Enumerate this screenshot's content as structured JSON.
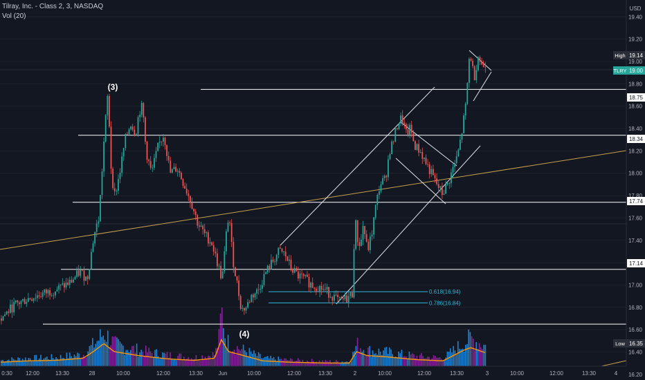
{
  "header": {
    "title": "Tilray, Inc. - Class 2, 3, NASDAQ",
    "volume_label": "Vol (20)"
  },
  "colors": {
    "background": "#131722",
    "up": "#26a69a",
    "down": "#ef5350",
    "volume_up": "#2196f3",
    "volume_down": "#9c27b0",
    "volume_ma": "#ff9800",
    "levels": "#ffffff",
    "trendline": "#c8a24b",
    "fib": "#2fb8d8",
    "last_price_tag": "#26a69a"
  },
  "chart_data": {
    "type": "candlestick",
    "symbol": "TLRY",
    "currency": "USD",
    "y_axis": {
      "min": 16.15,
      "max": 19.55,
      "ticks": [
        16.2,
        16.4,
        16.6,
        16.8,
        17.0,
        17.2,
        17.4,
        17.6,
        17.8,
        18.0,
        18.2,
        18.4,
        18.6,
        18.8,
        19.0,
        19.2,
        19.4
      ]
    },
    "x_axis": {
      "tick_labels": [
        "0:30",
        "12:00",
        "13:30",
        "28",
        "10:00",
        "12:00",
        "13:30",
        "Jun",
        "10:00",
        "12:00",
        "13:30",
        "2",
        "10:00",
        "12:00",
        "13:30",
        "3",
        "10:00",
        "12:00",
        "13:30",
        "4"
      ]
    },
    "horizontal_levels": [
      18.75,
      18.34,
      17.74,
      17.14,
      16.65
    ],
    "price_tags": [
      {
        "label": "High",
        "value": "19.14"
      },
      {
        "label": "TLRY",
        "value": "19.00"
      },
      {
        "label": "",
        "value": "18.75"
      },
      {
        "label": "",
        "value": "18.34"
      },
      {
        "label": "",
        "value": "17.74"
      },
      {
        "label": "",
        "value": "17.14"
      },
      {
        "label": "Low",
        "value": "16.35"
      }
    ],
    "fib_levels": [
      {
        "label": "0.618(16.94)",
        "value": 16.94
      },
      {
        "label": "0.786(16.84)",
        "value": 16.84
      }
    ],
    "annotations": [
      {
        "text": "(3)",
        "price": 18.77
      },
      {
        "text": "(4)",
        "price": 16.56
      }
    ],
    "price_path": [
      [
        0,
        16.7
      ],
      [
        20,
        16.82
      ],
      [
        40,
        16.88
      ],
      [
        60,
        16.92
      ],
      [
        80,
        16.96
      ],
      [
        100,
        17.02
      ],
      [
        115,
        17.12
      ],
      [
        125,
        17.05
      ],
      [
        135,
        17.45
      ],
      [
        142,
        17.6
      ],
      [
        150,
        18.35
      ],
      [
        155,
        18.72
      ],
      [
        160,
        18.0
      ],
      [
        165,
        17.8
      ],
      [
        172,
        18.0
      ],
      [
        180,
        18.3
      ],
      [
        188,
        18.45
      ],
      [
        195,
        18.35
      ],
      [
        200,
        18.55
      ],
      [
        205,
        18.6
      ],
      [
        210,
        18.2
      ],
      [
        218,
        18.0
      ],
      [
        228,
        18.25
      ],
      [
        236,
        18.35
      ],
      [
        245,
        18.0
      ],
      [
        255,
        18.05
      ],
      [
        265,
        17.9
      ],
      [
        275,
        17.75
      ],
      [
        285,
        17.55
      ],
      [
        295,
        17.45
      ],
      [
        305,
        17.38
      ],
      [
        313,
        17.2
      ],
      [
        320,
        17.05
      ],
      [
        326,
        17.45
      ],
      [
        330,
        17.65
      ],
      [
        335,
        17.25
      ],
      [
        342,
        17.0
      ],
      [
        348,
        16.78
      ],
      [
        355,
        16.8
      ],
      [
        362,
        16.9
      ],
      [
        372,
        16.95
      ],
      [
        382,
        17.1
      ],
      [
        392,
        17.2
      ],
      [
        402,
        17.3
      ],
      [
        410,
        17.28
      ],
      [
        420,
        17.15
      ],
      [
        430,
        17.08
      ],
      [
        440,
        17.05
      ],
      [
        450,
        17.0
      ],
      [
        460,
        16.98
      ],
      [
        470,
        16.95
      ],
      [
        480,
        16.9
      ],
      [
        490,
        16.85
      ],
      [
        500,
        16.88
      ],
      [
        508,
        16.92
      ],
      [
        512,
        17.6
      ],
      [
        516,
        17.4
      ],
      [
        520,
        17.35
      ],
      [
        524,
        17.55
      ],
      [
        530,
        17.3
      ],
      [
        536,
        17.45
      ],
      [
        542,
        17.7
      ],
      [
        548,
        17.9
      ],
      [
        556,
        17.95
      ],
      [
        562,
        18.2
      ],
      [
        568,
        18.3
      ],
      [
        574,
        18.45
      ],
      [
        580,
        18.5
      ],
      [
        586,
        18.35
      ],
      [
        592,
        18.4
      ],
      [
        598,
        18.25
      ],
      [
        606,
        18.2
      ],
      [
        614,
        18.1
      ],
      [
        622,
        18.0
      ],
      [
        630,
        17.9
      ],
      [
        638,
        17.82
      ],
      [
        646,
        17.9
      ],
      [
        654,
        18.05
      ],
      [
        660,
        18.15
      ],
      [
        666,
        18.35
      ],
      [
        672,
        18.6
      ],
      [
        678,
        19.1
      ],
      [
        684,
        18.85
      ],
      [
        690,
        19.05
      ],
      [
        696,
        18.95
      ],
      [
        702,
        19.0
      ]
    ],
    "volume_path": [
      [
        0,
        0.15
      ],
      [
        40,
        0.2
      ],
      [
        80,
        0.22
      ],
      [
        120,
        0.3
      ],
      [
        135,
        0.55
      ],
      [
        150,
        0.85
      ],
      [
        165,
        0.55
      ],
      [
        200,
        0.4
      ],
      [
        240,
        0.28
      ],
      [
        280,
        0.22
      ],
      [
        310,
        0.3
      ],
      [
        320,
        1.0
      ],
      [
        330,
        0.55
      ],
      [
        345,
        0.45
      ],
      [
        380,
        0.2
      ],
      [
        420,
        0.15
      ],
      [
        470,
        0.12
      ],
      [
        505,
        0.12
      ],
      [
        515,
        0.55
      ],
      [
        530,
        0.4
      ],
      [
        560,
        0.35
      ],
      [
        600,
        0.25
      ],
      [
        640,
        0.2
      ],
      [
        670,
        0.6
      ],
      [
        680,
        0.7
      ],
      [
        702,
        0.5
      ]
    ]
  }
}
